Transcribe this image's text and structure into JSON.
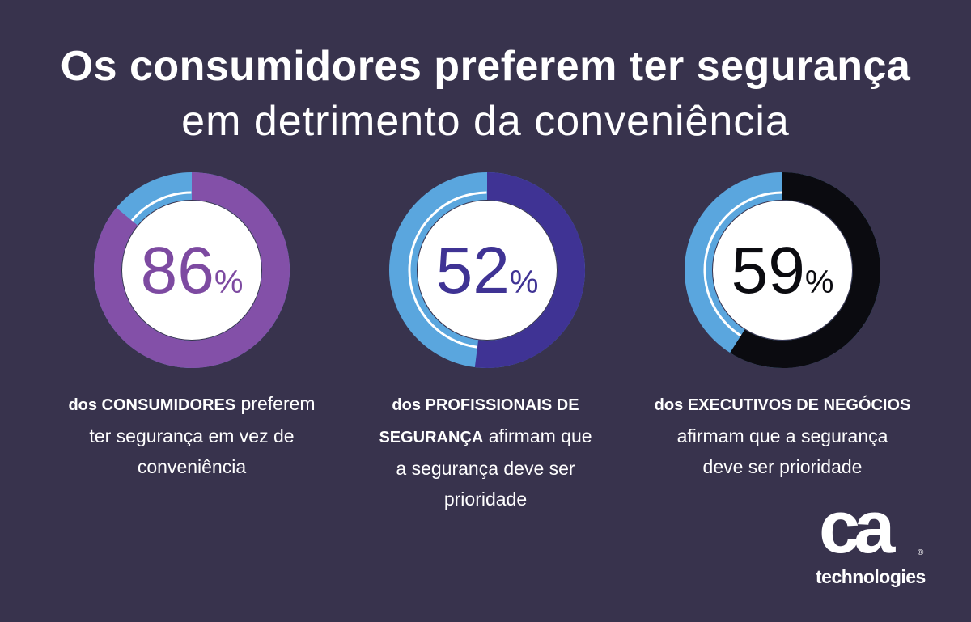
{
  "title": "Os consumidores preferem ter segurança",
  "subtitle": "em detrimento da conveniência",
  "colors": {
    "background": "#38334d",
    "light_blue": "#5aa6de",
    "ring_white": "#ffffff"
  },
  "chart_data": {
    "type": "pie",
    "title": "Os consumidores preferem ter segurança em detrimento da conveniência",
    "items": [
      {
        "value": 86,
        "number": "86",
        "unit": "%",
        "color": "#8350a8",
        "text_color": "#7d4aa1",
        "caption_bold": "dos CONSUMIDORES",
        "caption_lines": [
          "preferem",
          "ter segurança em vez de",
          "conveniência"
        ]
      },
      {
        "value": 52,
        "number": "52",
        "unit": "%",
        "color": "#3f3394",
        "text_color": "#3f3394",
        "caption_bold_1": "dos PROFISSIONAIS DE",
        "caption_bold_2": "SEGURANÇA",
        "caption_lines": [
          "afirmam que",
          "a segurança deve ser",
          "prioridade"
        ]
      },
      {
        "value": 59,
        "number": "59",
        "unit": "%",
        "color": "#0b0b10",
        "text_color": "#0b0b10",
        "caption_bold": "dos EXECUTIVOS DE NEGÓCIOS",
        "caption_lines": [
          "afirmam que a segurança",
          "deve ser prioridade"
        ]
      }
    ]
  },
  "logo": {
    "mark": "ca",
    "registered": "®",
    "wordmark": "technologies"
  }
}
